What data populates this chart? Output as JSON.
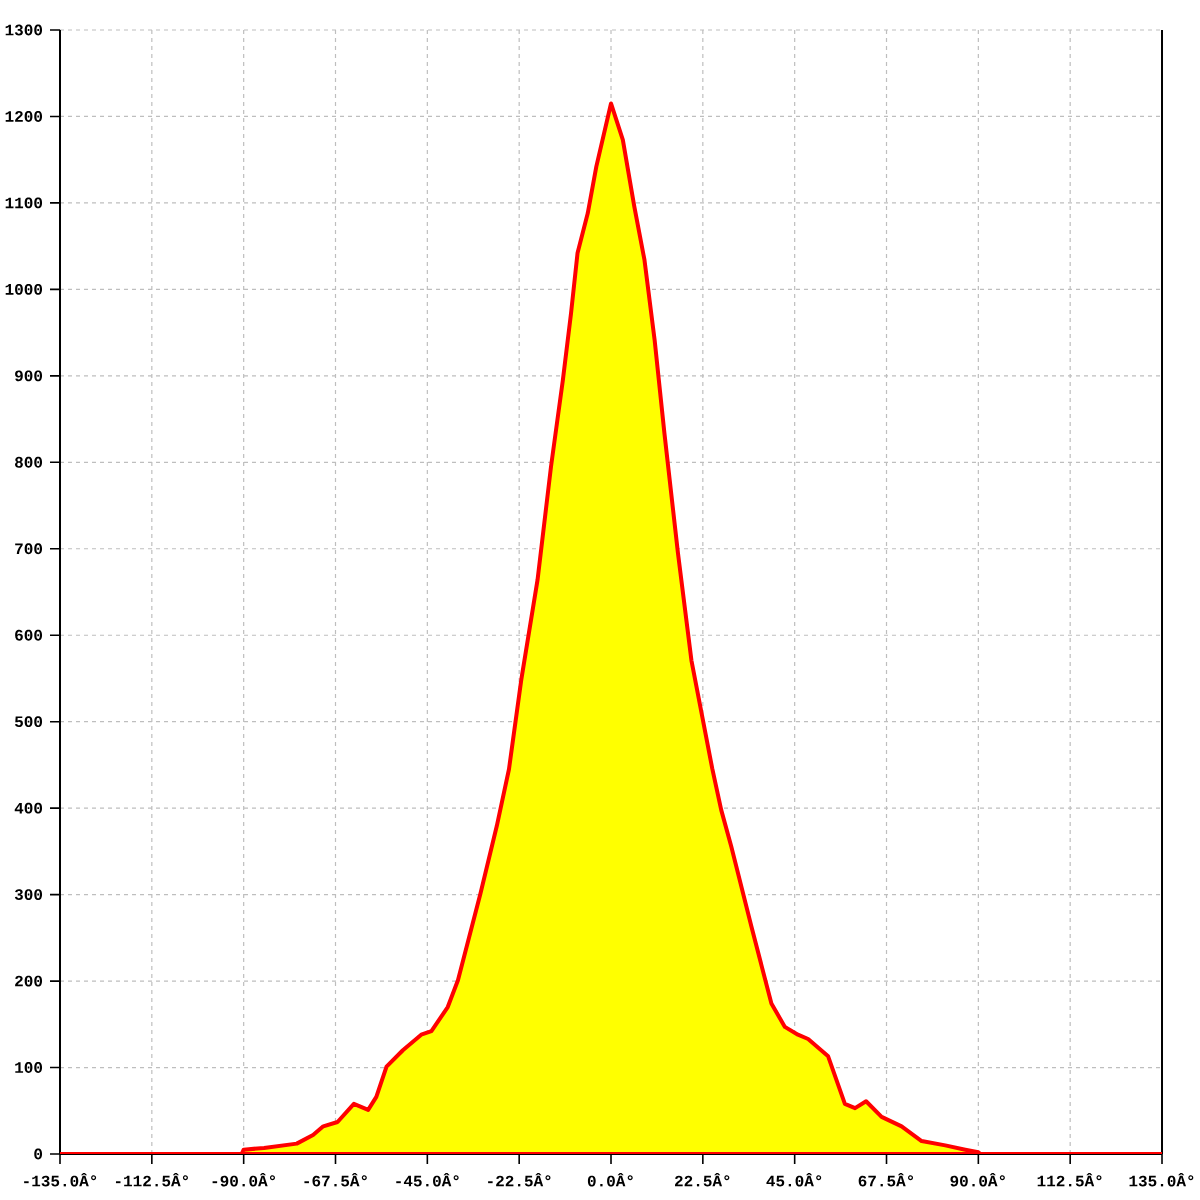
{
  "chart_data": {
    "type": "area",
    "x": [
      -135,
      -90.5,
      -90,
      -85,
      -77,
      -73,
      -70.5,
      -67,
      -63,
      -59.5,
      -57.5,
      -55,
      -51,
      -46.5,
      -44,
      -40,
      -37.5,
      -32,
      -28,
      -25,
      -22,
      -18,
      -14.7,
      -11.8,
      -9.8,
      -8.2,
      -5.7,
      -3.6,
      0,
      2.9,
      5.7,
      8.2,
      10.7,
      13.1,
      16.4,
      19.7,
      24.8,
      27,
      29.5,
      34.4,
      39.3,
      42.6,
      45.8,
      48.3,
      53.2,
      57.3,
      59.8,
      62.5,
      66.3,
      71.2,
      76.1,
      81.9,
      86.8,
      90,
      90.5,
      135
    ],
    "series": [
      {
        "color": "#ffff00",
        "values": [
          0,
          0,
          5,
          7,
          12,
          22,
          32,
          37,
          58,
          51,
          66,
          101,
          120,
          138,
          142,
          170,
          201,
          301,
          379,
          445,
          548,
          664,
          795,
          895,
          972,
          1042,
          1088,
          1142,
          1215,
          1173,
          1096,
          1034,
          941,
          833,
          695,
          571,
          446,
          398,
          355,
          263,
          174,
          147,
          138,
          133,
          113,
          58,
          53,
          61,
          43,
          32,
          15,
          10,
          5,
          2,
          0,
          0
        ]
      }
    ],
    "xlim": [
      -135,
      135
    ],
    "ylim": [
      0,
      1300
    ],
    "xticks": [
      {
        "value": -135,
        "label": "-135.0Â°"
      },
      {
        "value": -112.5,
        "label": "-112.5Â°"
      },
      {
        "value": -90,
        "label": "-90.0Â°"
      },
      {
        "value": -67.5,
        "label": "-67.5Â°"
      },
      {
        "value": -45,
        "label": "-45.0Â°"
      },
      {
        "value": -22.5,
        "label": "-22.5Â°"
      },
      {
        "value": 0,
        "label": "0.0Â°"
      },
      {
        "value": 22.5,
        "label": "22.5Â°"
      },
      {
        "value": 45,
        "label": "45.0Â°"
      },
      {
        "value": 67.5,
        "label": "67.5Â°"
      },
      {
        "value": 90,
        "label": "90.0Â°"
      },
      {
        "value": 112.5,
        "label": "112.5Â°"
      },
      {
        "value": 135,
        "label": "135.0Â°"
      }
    ],
    "yticks": [
      0,
      100,
      200,
      300,
      400,
      500,
      600,
      700,
      800,
      900,
      1000,
      1100,
      1200,
      1300
    ],
    "grid": true
  }
}
